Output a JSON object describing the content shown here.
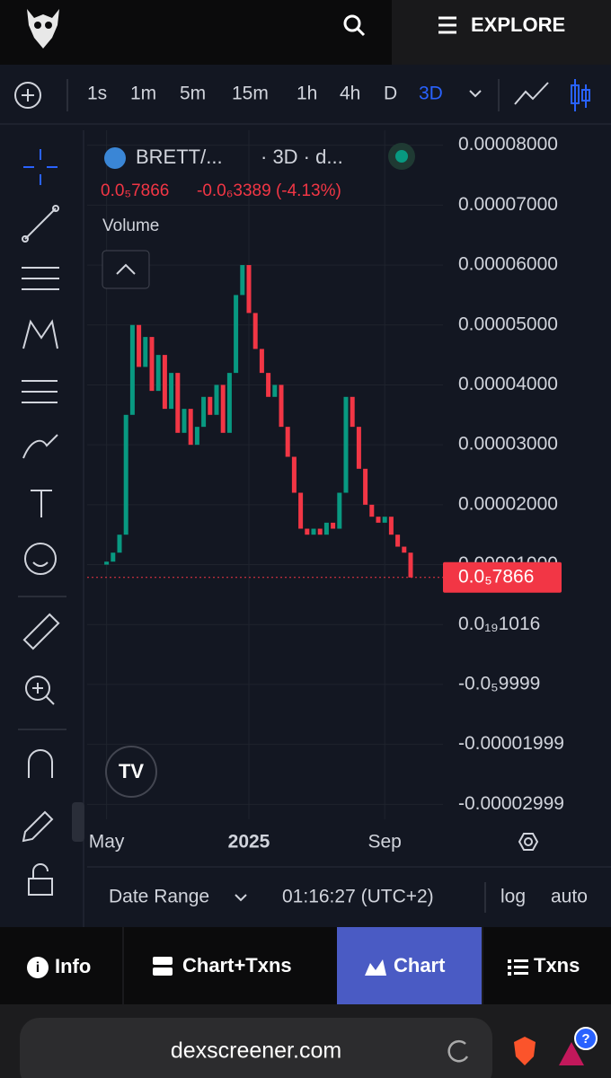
{
  "header": {
    "explore": "EXPLORE"
  },
  "toolbar": {
    "timeframes": [
      "1s",
      "1m",
      "5m",
      "15m",
      "1h",
      "4h",
      "D",
      "3D"
    ],
    "active_timeframe": 7
  },
  "chart_data": {
    "type": "candlestick",
    "pair": "BRETT/...",
    "interval_info": "· 3D · d...",
    "last_price_label": "0.0₅7866",
    "price_change": "-0.0₆3389 (-4.13%)",
    "volume_label": "Volume",
    "up_color": "#089981",
    "down_color": "#f23645",
    "grid": true,
    "ylim": [
      -3.25e-05,
      8.25e-05
    ],
    "yticks": [
      {
        "value": 8e-05,
        "label": "0.00008000"
      },
      {
        "value": 7e-05,
        "label": "0.00007000"
      },
      {
        "value": 6e-05,
        "label": "0.00006000"
      },
      {
        "value": 5e-05,
        "label": "0.00005000"
      },
      {
        "value": 4e-05,
        "label": "0.00004000"
      },
      {
        "value": 3e-05,
        "label": "0.00003000"
      },
      {
        "value": 2e-05,
        "label": "0.00002000"
      },
      {
        "value": 1e-05,
        "label": "0.00001000"
      },
      {
        "value": 0,
        "label": "0.0₁₉1016"
      },
      {
        "value": -1e-05,
        "label": "-0.0₅9999"
      },
      {
        "value": -2e-05,
        "label": "-0.00001999"
      },
      {
        "value": -3e-05,
        "label": "-0.00002999"
      }
    ],
    "last_price": {
      "value": 7.866e-06,
      "label": "0.0₅7866"
    },
    "xlim": [
      -3,
      52
    ],
    "xticks": [
      {
        "value": 0,
        "label": "May"
      },
      {
        "value": 22,
        "label": "2025"
      },
      {
        "value": 43,
        "label": "Sep"
      }
    ],
    "opens": [
      1e-05,
      1.05e-05,
      1.2e-05,
      1.5e-05,
      3.5e-05,
      5e-05,
      4.3e-05,
      4.8e-05,
      3.9e-05,
      4.5e-05,
      3.6e-05,
      4.2e-05,
      3.2e-05,
      3.6e-05,
      3e-05,
      3.3e-05,
      3.8e-05,
      3.5e-05,
      4e-05,
      3.2e-05,
      4.2e-05,
      5.5e-05,
      6e-05,
      5.2e-05,
      4.6e-05,
      4.2e-05,
      3.8e-05,
      4e-05,
      3.3e-05,
      2.8e-05,
      2.2e-05,
      1.6e-05,
      1.5e-05,
      1.6e-05,
      1.5e-05,
      1.7e-05,
      1.6e-05,
      2.2e-05,
      3.8e-05,
      3.3e-05,
      2.6e-05,
      2e-05,
      1.8e-05,
      1.7e-05,
      1.8e-05,
      1.5e-05,
      1.3e-05,
      1.2e-05
    ],
    "closes": [
      1.05e-05,
      1.2e-05,
      1.5e-05,
      3.5e-05,
      5e-05,
      4.3e-05,
      4.8e-05,
      3.9e-05,
      4.5e-05,
      3.6e-05,
      4.2e-05,
      3.2e-05,
      3.6e-05,
      3e-05,
      3.3e-05,
      3.8e-05,
      3.5e-05,
      4e-05,
      3.2e-05,
      4.2e-05,
      5.5e-05,
      6e-05,
      5.2e-05,
      4.6e-05,
      4.2e-05,
      3.8e-05,
      4e-05,
      3.3e-05,
      2.8e-05,
      2.2e-05,
      1.6e-05,
      1.5e-05,
      1.6e-05,
      1.5e-05,
      1.7e-05,
      1.6e-05,
      2.2e-05,
      3.8e-05,
      3.3e-05,
      2.6e-05,
      2e-05,
      1.8e-05,
      1.7e-05,
      1.8e-05,
      1.5e-05,
      1.3e-05,
      1.2e-05,
      7.866e-06
    ]
  },
  "chart_footer": {
    "date_range": "Date Range",
    "time": "01:16:27 (UTC+2)",
    "log": "log",
    "auto": "auto"
  },
  "tabs": [
    "Info",
    "Chart+Txns",
    "Chart",
    "Txns"
  ],
  "browser": {
    "url": "dexscreener.com"
  }
}
